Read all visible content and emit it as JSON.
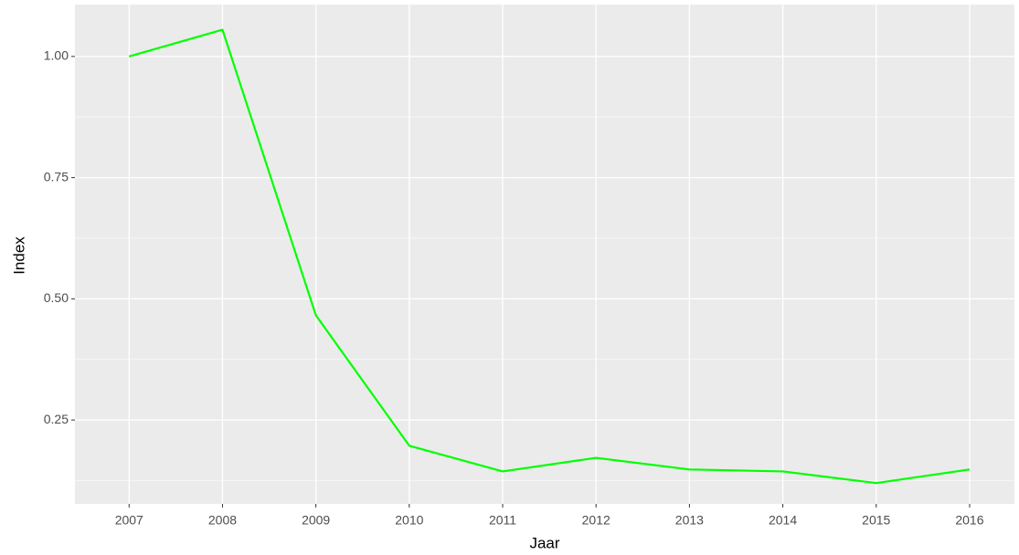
{
  "chart_data": {
    "type": "line",
    "x": [
      2007,
      2008,
      2009,
      2010,
      2011,
      2012,
      2013,
      2014,
      2015,
      2016
    ],
    "series": [
      {
        "name": "Index",
        "color": "#00ff00",
        "values": [
          1.0,
          1.055,
          0.466,
          0.197,
          0.144,
          0.172,
          0.148,
          0.144,
          0.12,
          0.148
        ]
      }
    ],
    "xlabel": "Jaar",
    "ylabel": "Index",
    "xlim": [
      2006.42,
      2016.48
    ],
    "xticks": [
      2007,
      2008,
      2009,
      2010,
      2011,
      2012,
      2013,
      2014,
      2015,
      2016
    ],
    "ylim": [
      0.077,
      1.107
    ],
    "yticks": [
      {
        "value": 0.25,
        "label": "0.25"
      },
      {
        "value": 0.5,
        "label": "0.50"
      },
      {
        "value": 0.75,
        "label": "0.75"
      },
      {
        "value": 1.0,
        "label": "1.00"
      }
    ],
    "grid": true
  }
}
